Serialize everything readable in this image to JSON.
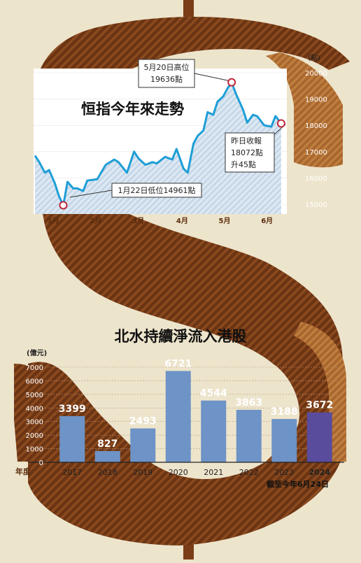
{
  "colors": {
    "background": "#ede4cc",
    "brown_dark": "#6b3413",
    "brown_light": "#9a5a27",
    "line": "#1e9ed6",
    "area": "#cfe0ee",
    "bar": "#6e93c6",
    "bar_highlight": "#5a4c9c",
    "marker": "#c0283a"
  },
  "chart_data": [
    {
      "type": "line",
      "title": "恒指今年來走勢",
      "y_unit": "(點)",
      "ylim": [
        15000,
        20000
      ],
      "y_ticks": [
        15000,
        16000,
        17000,
        18000,
        19000,
        20000
      ],
      "x_ticks": [
        "1月",
        "2月",
        "3月",
        "4月",
        "5月",
        "6月"
      ],
      "series": [
        {
          "x": [
            "2024-01-02",
            "2024-01-05",
            "2024-01-09",
            "2024-01-12",
            "2024-01-16",
            "2024-01-19",
            "2024-01-22",
            "2024-01-25",
            "2024-01-29",
            "2024-02-01",
            "2024-02-05",
            "2024-02-08",
            "2024-02-15",
            "2024-02-21",
            "2024-02-27",
            "2024-03-01",
            "2024-03-07",
            "2024-03-12",
            "2024-03-15",
            "2024-03-20",
            "2024-03-25",
            "2024-03-28",
            "2024-04-03",
            "2024-04-08",
            "2024-04-11",
            "2024-04-16",
            "2024-04-19",
            "2024-04-23",
            "2024-04-26",
            "2024-04-30",
            "2024-05-03",
            "2024-05-07",
            "2024-05-10",
            "2024-05-14",
            "2024-05-17",
            "2024-05-20",
            "2024-05-23",
            "2024-05-28",
            "2024-05-31",
            "2024-06-04",
            "2024-06-07",
            "2024-06-12",
            "2024-06-17",
            "2024-06-20",
            "2024-06-24"
          ],
          "values": [
            16850,
            16600,
            16200,
            16300,
            15800,
            15300,
            14961,
            15850,
            15600,
            15600,
            15500,
            15900,
            15950,
            16500,
            16700,
            16600,
            16200,
            17000,
            16750,
            16500,
            16600,
            16550,
            16800,
            16700,
            17100,
            16350,
            16200,
            17300,
            17600,
            17800,
            18500,
            18400,
            18900,
            19100,
            19400,
            19636,
            19200,
            18600,
            18100,
            18400,
            18350,
            18000,
            17950,
            18350,
            18072
          ]
        }
      ],
      "annotations": [
        {
          "lines": [
            "5月20日高位",
            "19636點"
          ]
        },
        {
          "lines": [
            "1月22日低位14961點"
          ]
        },
        {
          "lines": [
            "昨日收報",
            "18072點",
            "升45點"
          ]
        }
      ]
    },
    {
      "type": "bar",
      "title": "北水持續淨流入港股",
      "y_unit": "(億元)",
      "x_label": "年度",
      "ylim": [
        0,
        7000
      ],
      "y_ticks": [
        0,
        1000,
        2000,
        3000,
        4000,
        5000,
        6000,
        7000
      ],
      "categories": [
        "2017",
        "2018",
        "2019",
        "2020",
        "2021",
        "2022",
        "2023",
        "2024"
      ],
      "values": [
        3399,
        827,
        2493,
        6721,
        4544,
        3863,
        3188,
        3672
      ],
      "note": "截至今年6月24日"
    }
  ]
}
